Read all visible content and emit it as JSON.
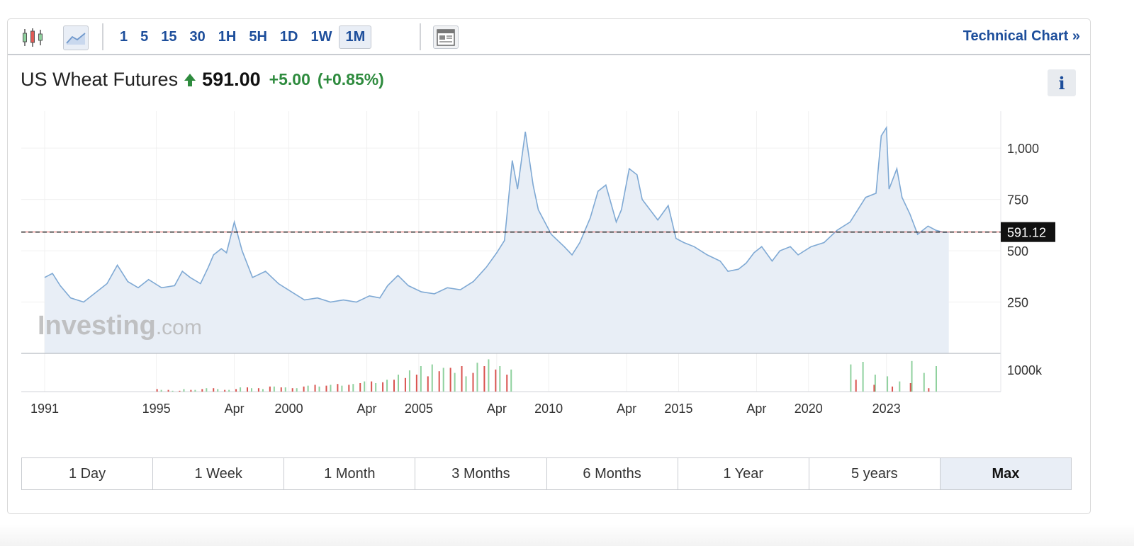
{
  "toolbar": {
    "intervals": [
      "1",
      "5",
      "15",
      "30",
      "1H",
      "5H",
      "1D",
      "1W",
      "1M"
    ],
    "active_interval": "1M",
    "technical_chart_label": "Technical Chart »",
    "icons": [
      "candlestick-icon",
      "line-chart-icon",
      "layout-icon"
    ]
  },
  "quote": {
    "instrument": "US Wheat Futures",
    "price": "591.00",
    "change": "+5.00",
    "change_pct": "(+0.85%)",
    "direction": "up",
    "info_label": "i"
  },
  "ranges": {
    "items": [
      "1 Day",
      "1 Week",
      "1 Month",
      "3 Months",
      "6 Months",
      "1 Year",
      "5 years",
      "Max"
    ],
    "active": "Max"
  },
  "colors": {
    "line": "#7fa9d4",
    "area": "#e8eef6",
    "up_green": "#2e8b3e",
    "volume_up": "#8fd19e",
    "volume_down": "#d9534f",
    "link_blue": "#1d4e9b",
    "current_price_label_bg": "#111111"
  },
  "chart_data": {
    "type": "area",
    "watermark": "Investing.com",
    "x_tick_labels": [
      "1991",
      "1995",
      "Apr",
      "2000",
      "Apr",
      "2005",
      "Apr",
      "2010",
      "Apr",
      "2015",
      "Apr",
      "2020",
      "2023"
    ],
    "y_ticks": [
      250,
      500,
      750,
      1000
    ],
    "y_tick_labels": [
      "250",
      "500",
      "750",
      "1,000"
    ],
    "ylim": [
      0,
      1180
    ],
    "current_price_label": "591.12",
    "current_price": 591.12,
    "volume_axis_label": "1000k",
    "series": [
      {
        "x": [
          1990.0,
          1990.3,
          1990.6,
          1991.0,
          1991.5,
          1992.0,
          1992.4,
          1992.8,
          1993.2,
          1993.6,
          1994.0,
          1994.5,
          1995.0,
          1995.3,
          1995.6,
          1996.0,
          1996.3,
          1996.5,
          1996.8,
          1997.0,
          1997.3,
          1997.6,
          1998.0,
          1998.5,
          1999.0,
          1999.5,
          2000.0,
          2000.5,
          2001.0,
          2001.5,
          2002.0,
          2002.5,
          2002.9,
          2003.2,
          2003.6,
          2004.0,
          2004.5,
          2005.0,
          2005.5,
          2006.0,
          2006.5,
          2007.0,
          2007.4,
          2007.7,
          2008.0,
          2008.2,
          2008.5,
          2008.8,
          2009.0,
          2009.5,
          2010.0,
          2010.3,
          2010.6,
          2011.0,
          2011.3,
          2011.6,
          2012.0,
          2012.2,
          2012.5,
          2012.8,
          2013.0,
          2013.3,
          2013.6,
          2014.0,
          2014.3,
          2014.6,
          2015.0,
          2015.5,
          2016.0,
          2016.3,
          2016.7,
          2017.0,
          2017.3,
          2017.6,
          2018.0,
          2018.3,
          2018.7,
          2019.0,
          2019.5,
          2020.0,
          2020.5,
          2021.0,
          2021.3,
          2021.6,
          2022.0,
          2022.2,
          2022.4,
          2022.5,
          2022.8,
          2023.0,
          2023.3,
          2023.6,
          2024.0,
          2024.3,
          2024.6,
          2024.8
        ],
        "y": [
          370,
          390,
          330,
          270,
          250,
          300,
          340,
          430,
          350,
          320,
          360,
          320,
          330,
          400,
          370,
          340,
          420,
          480,
          510,
          490,
          640,
          500,
          370,
          400,
          340,
          300,
          260,
          270,
          250,
          260,
          250,
          280,
          270,
          330,
          380,
          330,
          300,
          290,
          320,
          310,
          350,
          420,
          490,
          550,
          940,
          800,
          1080,
          820,
          700,
          580,
          520,
          480,
          540,
          660,
          790,
          820,
          640,
          700,
          900,
          870,
          750,
          700,
          650,
          720,
          560,
          540,
          520,
          480,
          450,
          400,
          410,
          440,
          490,
          520,
          450,
          500,
          520,
          480,
          520,
          540,
          600,
          640,
          700,
          760,
          780,
          1060,
          1100,
          800,
          900,
          760,
          680,
          580,
          620,
          600,
          590,
          591
        ]
      }
    ],
    "volume": {
      "up": [
        2,
        1,
        3,
        2,
        4,
        3,
        2,
        5,
        4,
        3,
        6,
        5,
        4,
        7,
        6,
        8,
        7,
        9,
        12,
        10,
        14,
        20,
        25,
        30,
        32,
        28,
        22,
        18,
        34,
        38,
        30,
        26
      ],
      "down": [
        3,
        2,
        1,
        2,
        3,
        4,
        2,
        3,
        5,
        4,
        6,
        5,
        4,
        6,
        8,
        7,
        9,
        8,
        10,
        12,
        11,
        14,
        16,
        20,
        18,
        24,
        28,
        30,
        22,
        30,
        26,
        20
      ],
      "recent_up": [
        32,
        35,
        20,
        18,
        12,
        36,
        22,
        30
      ],
      "recent_down": [
        14,
        8,
        6,
        10,
        4
      ]
    }
  }
}
